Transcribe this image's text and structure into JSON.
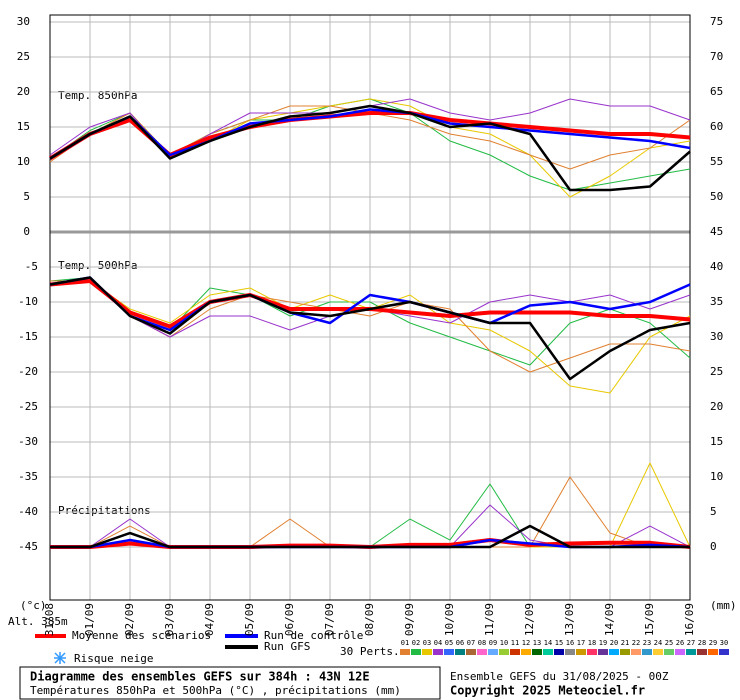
{
  "chart_data": [
    {
      "type": "line",
      "label": "Temp. 850hPa",
      "categories": [
        "31/08",
        "01/09",
        "02/09",
        "03/09",
        "04/09",
        "05/09",
        "06/09",
        "07/09",
        "08/09",
        "09/09",
        "10/09",
        "11/09",
        "12/09",
        "13/09",
        "14/09",
        "15/09",
        "16/09"
      ],
      "ylim": [
        0,
        31
      ],
      "yticks": [
        0,
        5,
        10,
        15,
        20,
        25,
        30
      ],
      "y2lim": [
        45,
        76
      ],
      "y2ticks": [
        45,
        50,
        55,
        60,
        65,
        70,
        75
      ],
      "series": [
        {
          "color": "#22bb44",
          "values": [
            10.5,
            14.5,
            17,
            11,
            14,
            16,
            16,
            18,
            19,
            17,
            13,
            11,
            8,
            6,
            7,
            8,
            9
          ]
        },
        {
          "color": "#e8c800",
          "values": [
            10.5,
            14,
            17,
            11,
            13,
            16,
            17,
            18,
            19,
            18,
            15,
            14,
            11,
            5,
            8,
            12,
            13
          ]
        },
        {
          "color": "#e08030",
          "values": [
            10,
            14,
            17,
            11,
            14,
            16,
            18,
            18,
            17,
            16,
            14,
            13,
            11,
            9,
            11,
            12,
            16
          ]
        },
        {
          "color": "#9933cc",
          "values": [
            11,
            15,
            17,
            10.5,
            14,
            17,
            17,
            17,
            18,
            19,
            17,
            16,
            17,
            19,
            18,
            18,
            16
          ]
        },
        {
          "name": "Moyenne des scénarios",
          "color": "#ff0000",
          "values": [
            10.5,
            14,
            16,
            11,
            13.5,
            15,
            16,
            16.5,
            17,
            17,
            16,
            15.5,
            15,
            14.5,
            14,
            14,
            13.5
          ]
        },
        {
          "name": "Run de contrôle",
          "color": "#0000ff",
          "values": [
            10.5,
            14,
            16.5,
            11,
            13,
            15.5,
            16,
            16.5,
            17.5,
            17,
            15.5,
            15,
            14.5,
            14,
            13.5,
            13,
            12
          ]
        },
        {
          "name": "Run GFS",
          "color": "#000000",
          "values": [
            10.5,
            14,
            16.5,
            10.5,
            13,
            15,
            16.5,
            17,
            18,
            17,
            15,
            15.5,
            14,
            6,
            6,
            6.5,
            11.5
          ]
        }
      ]
    },
    {
      "type": "line",
      "label": "Temp. 500hPa",
      "ylim": [
        -52.57,
        0
      ],
      "yticks": [
        -5,
        -10,
        -15,
        -20,
        -25,
        -30,
        -35,
        -40,
        -45
      ],
      "series": [
        {
          "color": "#22bb44",
          "values": [
            -7,
            -6.5,
            -12,
            -14,
            -8,
            -9,
            -12,
            -10,
            -10,
            -13,
            -15,
            -17,
            -19,
            -13,
            -11,
            -13,
            -18
          ]
        },
        {
          "color": "#e8c800",
          "values": [
            -7.5,
            -7,
            -11,
            -13,
            -9,
            -8,
            -11,
            -9,
            -11,
            -9,
            -13,
            -14,
            -17,
            -22,
            -23,
            -15,
            -12
          ]
        },
        {
          "color": "#e08030",
          "values": [
            -7,
            -7,
            -12,
            -15,
            -11,
            -9,
            -10,
            -11,
            -12,
            -10,
            -11,
            -17,
            -20,
            -18,
            -16,
            -16,
            -17
          ]
        },
        {
          "color": "#9933cc",
          "values": [
            -7.5,
            -7,
            -12,
            -15,
            -12,
            -12,
            -14,
            -12,
            -11,
            -12,
            -13,
            -10,
            -9,
            -10,
            -9,
            -11,
            -9
          ]
        },
        {
          "color": "#ff0000",
          "values": [
            -7.5,
            -7,
            -11.5,
            -13.5,
            -10,
            -9,
            -11,
            -11,
            -11,
            -11.5,
            -12,
            -11.5,
            -11.5,
            -11.5,
            -12,
            -12,
            -12.5
          ]
        },
        {
          "color": "#0000ff",
          "values": [
            -7.5,
            -6.5,
            -12,
            -14,
            -10,
            -9,
            -11.5,
            -13,
            -9,
            -10,
            -11.5,
            -13,
            -10.5,
            -10,
            -11,
            -10,
            -7.5
          ]
        },
        {
          "color": "#000000",
          "values": [
            -7.5,
            -6.5,
            -12,
            -14.5,
            -10,
            -9,
            -11.5,
            -12,
            -11,
            -10,
            -11.5,
            -13,
            -13,
            -21,
            -17,
            -14,
            -13
          ]
        }
      ]
    },
    {
      "type": "line",
      "label": "Précipitations",
      "ylim": [
        -7.57,
        45
      ],
      "yticks": [
        0,
        5,
        10,
        15,
        20,
        25,
        30,
        35,
        40
      ],
      "series": [
        {
          "color": "#22bb44",
          "values": [
            0,
            0,
            1,
            0,
            0,
            0,
            0,
            0,
            0,
            4,
            1,
            9,
            0,
            0,
            0,
            0,
            0
          ]
        },
        {
          "color": "#e8c800",
          "values": [
            0,
            0,
            2,
            0,
            0,
            0,
            0,
            0,
            0,
            0,
            0,
            0,
            0,
            0,
            0,
            12,
            0
          ]
        },
        {
          "color": "#e08030",
          "values": [
            0,
            0,
            3,
            0,
            0,
            0,
            4,
            0,
            0,
            0,
            0,
            0,
            0,
            10,
            2,
            0,
            0
          ]
        },
        {
          "color": "#9933cc",
          "values": [
            0,
            0,
            4,
            0,
            0,
            0,
            0,
            0,
            0,
            0,
            0,
            6,
            1,
            0,
            0,
            3,
            0
          ]
        },
        {
          "color": "#ff0000",
          "values": [
            0,
            0,
            0.5,
            0,
            0,
            0,
            0.2,
            0.2,
            0,
            0.3,
            0.3,
            1,
            0.3,
            0.5,
            0.6,
            0.6,
            0
          ]
        },
        {
          "color": "#0000ff",
          "values": [
            0,
            0,
            1,
            0,
            0,
            0,
            0,
            0,
            0,
            0,
            0,
            1,
            0.5,
            0,
            0,
            0.3,
            0
          ]
        },
        {
          "color": "#000000",
          "values": [
            0,
            0,
            2,
            0,
            0,
            0,
            0,
            0,
            0,
            0,
            0,
            0,
            3,
            0,
            0,
            0,
            0
          ]
        }
      ]
    }
  ],
  "y_unit": "(°c)",
  "y2_unit": "(mm)",
  "altitude": "Alt. 385m",
  "legend": {
    "snow": "Risque neige",
    "perts_label": "30 Perts.",
    "pert_numbers": [
      "01",
      "02",
      "03",
      "04",
      "05",
      "06",
      "07",
      "08",
      "09",
      "10",
      "11",
      "12",
      "13",
      "14",
      "15",
      "16",
      "17",
      "18",
      "19",
      "20",
      "21",
      "22",
      "23",
      "24",
      "25",
      "26",
      "27",
      "28",
      "29",
      "30"
    ],
    "pert_colors": [
      "#e08030",
      "#22bb44",
      "#e8c800",
      "#9933cc",
      "#3366ff",
      "#008080",
      "#aa6633",
      "#ff66cc",
      "#66aaff",
      "#99cc33",
      "#cc3300",
      "#ffaa00",
      "#006600",
      "#00cc99",
      "#0000aa",
      "#888888",
      "#cc9900",
      "#ff3366",
      "#663399",
      "#00aaff",
      "#999900",
      "#ff9966",
      "#3399cc",
      "#ffcc33",
      "#66cc66",
      "#cc66ff",
      "#009999",
      "#993333",
      "#ff6600",
      "#3333cc"
    ]
  },
  "footer": {
    "title": "Diagramme des ensembles GEFS sur 384h : 43N 12E",
    "subtitle": "Températures 850hPa et 500hPa (°C) , précipitations (mm)",
    "run": "Ensemble GEFS du 31/08/2025 - 00Z",
    "copyright": "Copyright 2025 Meteociel.fr"
  }
}
